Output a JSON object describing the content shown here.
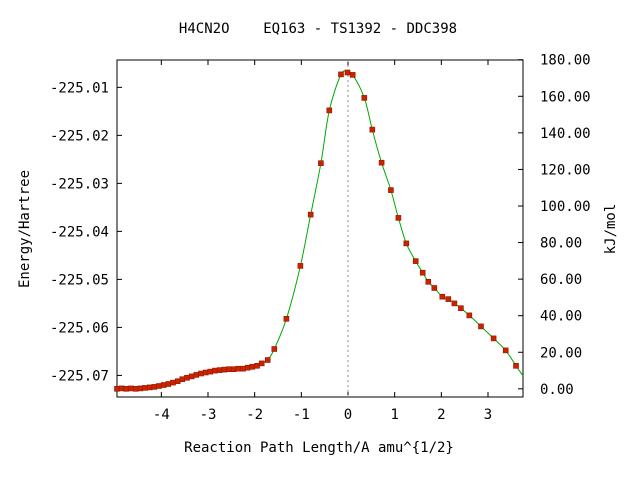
{
  "chart_data": {
    "type": "line",
    "title": "H4CN2O    EQ163 - TS1392 - DDC398",
    "xlabel": "Reaction Path Length/A amu^{1/2}",
    "ylabel": "Energy/Hartree",
    "y2label": "kJ/mol",
    "xlim": [
      -4.95,
      3.75
    ],
    "ylim": [
      -225.0745,
      -225.0043
    ],
    "x_ticks": [
      -4,
      -3,
      -2,
      -1,
      0,
      1,
      2,
      3
    ],
    "x_tick_labels": [
      "-4",
      "-3",
      "-2",
      "-1",
      "0",
      "1",
      "2",
      "3"
    ],
    "y_ticks": [
      -225.01,
      -225.02,
      -225.03,
      -225.04,
      -225.05,
      -225.06,
      -225.07
    ],
    "y_tick_labels": [
      "-225.01",
      "-225.02",
      "-225.03",
      "-225.04",
      "-225.05",
      "-225.06",
      "-225.07"
    ],
    "y2_ref_hartree": -225.0728,
    "y2_ticks": [
      0,
      20,
      40,
      60,
      80,
      100,
      120,
      140,
      160,
      180
    ],
    "y2_tick_labels": [
      "0.00",
      "20.00",
      "40.00",
      "60.00",
      "80.00",
      "100.00",
      "120.00",
      "140.00",
      "160.00",
      "180.00"
    ],
    "ts_x": 0,
    "grid": false,
    "colors": {
      "line": "#00aa00",
      "point": "#cc2200",
      "point_edge": "#8b1a00",
      "ts_marker": "#888888",
      "axis": "#000000"
    },
    "series": [
      {
        "x": [
          -4.95,
          -4.85,
          -4.75,
          -4.65,
          -4.55,
          -4.45,
          -4.35,
          -4.25,
          -4.15,
          -4.05,
          -3.95,
          -3.85,
          -3.75,
          -3.65,
          -3.55,
          -3.45,
          -3.35,
          -3.25,
          -3.15,
          -3.05,
          -2.95,
          -2.85,
          -2.75,
          -2.65,
          -2.55,
          -2.45,
          -2.35,
          -2.25,
          -2.15,
          -2.05,
          -1.95,
          -1.85,
          -1.72,
          -1.58,
          -1.32,
          -1.02,
          -0.8,
          -0.58,
          -0.4,
          -0.15,
          -0.01,
          0.1,
          0.35,
          0.52,
          0.72,
          0.92,
          1.08,
          1.25,
          1.45,
          1.6,
          1.72,
          1.85,
          2.02,
          2.15,
          2.28,
          2.42,
          2.6,
          2.85,
          3.12,
          3.38,
          3.6
        ],
        "y": [
          -225.0728,
          -225.0727,
          -225.0728,
          -225.0727,
          -225.0728,
          -225.0727,
          -225.0726,
          -225.0725,
          -225.0724,
          -225.0722,
          -225.072,
          -225.0718,
          -225.0715,
          -225.0712,
          -225.0708,
          -225.0705,
          -225.0702,
          -225.0699,
          -225.0696,
          -225.0694,
          -225.0692,
          -225.069,
          -225.0689,
          -225.0688,
          -225.0687,
          -225.0687,
          -225.0686,
          -225.0686,
          -225.0684,
          -225.0682,
          -225.068,
          -225.0675,
          -225.0668,
          -225.0645,
          -225.0582,
          -225.0472,
          -225.0365,
          -225.0258,
          -225.0148,
          -225.0073,
          -225.0069,
          -225.0074,
          -225.0122,
          -225.0188,
          -225.0257,
          -225.0314,
          -225.0372,
          -225.0425,
          -225.0462,
          -225.0486,
          -225.0505,
          -225.0518,
          -225.0536,
          -225.0541,
          -225.055,
          -225.056,
          -225.0575,
          -225.0598,
          -225.0623,
          -225.0648,
          -225.068
        ]
      }
    ]
  }
}
